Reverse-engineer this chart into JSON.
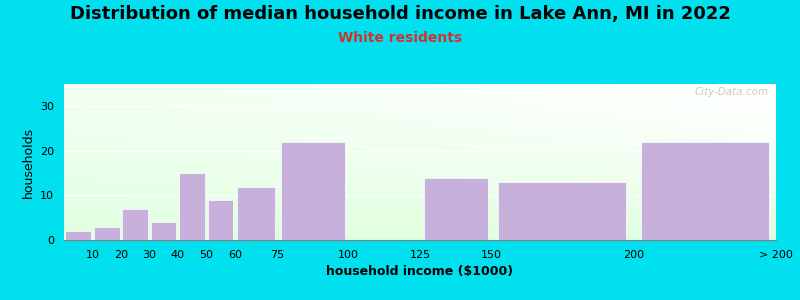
{
  "title": "Distribution of median household income in Lake Ann, MI in 2022",
  "subtitle": "White residents",
  "xlabel": "household income ($1000)",
  "ylabel": "households",
  "bin_edges": [
    0,
    10,
    20,
    30,
    40,
    50,
    60,
    75,
    100,
    125,
    150,
    200,
    250
  ],
  "bin_labels": [
    "10",
    "20",
    "30",
    "40",
    "50",
    "60",
    "75",
    "100",
    "125",
    "150",
    "200",
    "> 200"
  ],
  "bar_values": [
    2,
    3,
    7,
    4,
    15,
    9,
    12,
    22,
    0,
    14,
    13,
    22
  ],
  "bar_color": "#c8b0dc",
  "ylim": [
    0,
    35
  ],
  "yticks": [
    0,
    10,
    20,
    30
  ],
  "background_outer": "#00e0ee",
  "plot_bg_green": [
    0.88,
    1.0,
    0.88
  ],
  "plot_bg_white": [
    1.0,
    1.0,
    1.0
  ],
  "title_fontsize": 13,
  "subtitle_color": "#cc3333",
  "subtitle_fontsize": 10,
  "axis_label_fontsize": 9,
  "tick_fontsize": 8,
  "watermark": "City-Data.com"
}
